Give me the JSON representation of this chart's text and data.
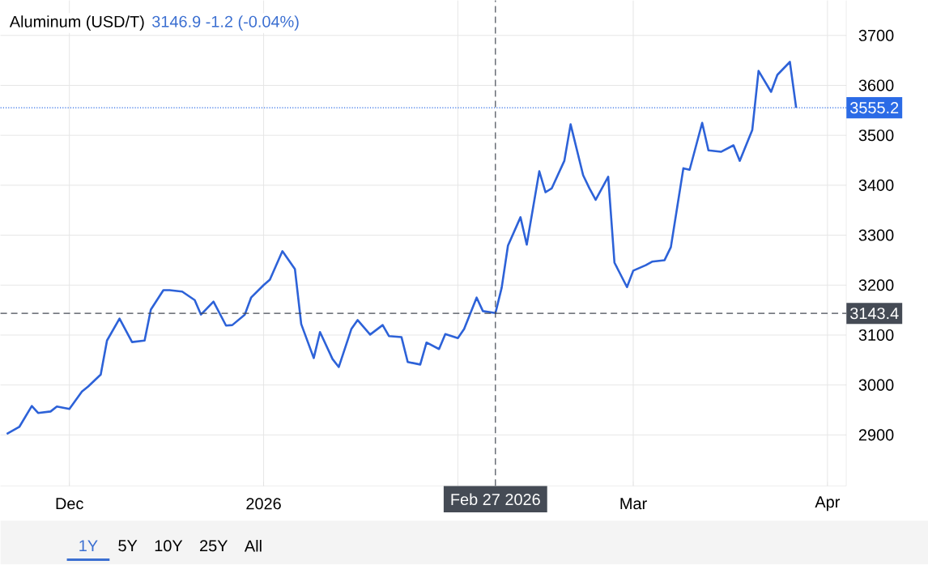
{
  "chart_data": {
    "type": "line",
    "title": "Aluminum (USD/T)",
    "subtitle": "3146.9  -1.2 (-0.04%)",
    "x": [
      "2025-11-21",
      "2025-11-23",
      "2025-11-25",
      "2025-11-26",
      "2025-11-28",
      "2025-11-29",
      "2025-12-01",
      "2025-12-03",
      "2025-12-04",
      "2025-12-06",
      "2025-12-07",
      "2025-12-09",
      "2025-12-11",
      "2025-12-13",
      "2025-12-14",
      "2025-12-16",
      "2025-12-17",
      "2025-12-19",
      "2025-12-21",
      "2025-12-22",
      "2025-12-24",
      "2025-12-26",
      "2025-12-27",
      "2025-12-29",
      "2025-12-30",
      "2026-01-01",
      "2026-01-02",
      "2026-01-04",
      "2026-01-06",
      "2026-01-07",
      "2026-01-09",
      "2026-01-10",
      "2026-01-12",
      "2026-01-13",
      "2026-01-15",
      "2026-01-16",
      "2026-01-18",
      "2026-01-20",
      "2026-01-21",
      "2026-01-23",
      "2026-01-24",
      "2026-01-26",
      "2026-01-27",
      "2026-01-29",
      "2026-01-30",
      "2026-02-01",
      "2026-02-02",
      "2026-02-04",
      "2026-02-05",
      "2026-02-07",
      "2026-02-08",
      "2026-02-09",
      "2026-02-11",
      "2026-02-12",
      "2026-02-14",
      "2026-02-15",
      "2026-02-16",
      "2026-02-18",
      "2026-02-19",
      "2026-02-21",
      "2026-02-22",
      "2026-02-23",
      "2026-02-25",
      "2026-02-26",
      "2026-02-28",
      "2026-03-01",
      "2026-03-03",
      "2026-03-04",
      "2026-03-06",
      "2026-03-07",
      "2026-03-09",
      "2026-03-10",
      "2026-03-12",
      "2026-03-13",
      "2026-03-15",
      "2026-03-17",
      "2026-03-18",
      "2026-03-20",
      "2026-03-21",
      "2026-03-23",
      "2026-03-24",
      "2026-03-26",
      "2026-03-27"
    ],
    "series": [
      {
        "color": "#2d62d8",
        "values": [
          2902,
          2916,
          2958,
          2944,
          2947,
          2957,
          2952,
          2987,
          2997,
          3021,
          3089,
          3133,
          3086,
          3089,
          3151,
          3190,
          3190,
          3187,
          3170,
          3141,
          3167,
          3119,
          3120,
          3141,
          3175,
          3200,
          3211,
          3268,
          3232,
          3122,
          3054,
          3106,
          3052,
          3036,
          3112,
          3130,
          3101,
          3120,
          3098,
          3096,
          3046,
          3041,
          3085,
          3072,
          3102,
          3094,
          3112,
          3175,
          3148,
          3144,
          3195,
          3279,
          3336,
          3281,
          3428,
          3386,
          3394,
          3449,
          3522,
          3420,
          3394,
          3371,
          3417,
          3245,
          3196,
          3229,
          3240,
          3247,
          3250,
          3276,
          3434,
          3431,
          3525,
          3470,
          3467,
          3480,
          3449,
          3511,
          3629,
          3587,
          3621,
          3647,
          3555.2
        ]
      }
    ],
    "xlim": [
      "2025-11-20",
      "2026-04-04"
    ],
    "xticks": [
      {
        "value": "2025-12-01",
        "label": "Dec"
      },
      {
        "value": "2026-01-01",
        "label": "2026"
      },
      {
        "value": "2026-02-01",
        "label": null
      },
      {
        "value": "2026-03-01",
        "label": "Mar"
      },
      {
        "value": "2026-04-01",
        "label": "Apr"
      }
    ],
    "ylim": [
      2798,
      3770
    ],
    "yticks": [
      2900,
      3000,
      3100,
      3200,
      3300,
      3400,
      3500,
      3600,
      3700
    ],
    "grid": true,
    "marker": "none",
    "line_style": "solid",
    "ref_lines": [
      {
        "axis": "y",
        "value": 3555.2,
        "label": "3555.2",
        "color": "#2b6be6",
        "line_style": "dotted"
      },
      {
        "axis": "y",
        "value": 3143.4,
        "label": "3143.4",
        "color": "#454b55",
        "line_style": "dashed"
      },
      {
        "axis": "x",
        "value": "2026-02-07",
        "label": "Feb 27 2026",
        "color": "#454b55",
        "line_style": "dashed"
      }
    ],
    "annotations": [
      "1Y",
      "5Y",
      "10Y",
      "25Y",
      "All"
    ]
  }
}
